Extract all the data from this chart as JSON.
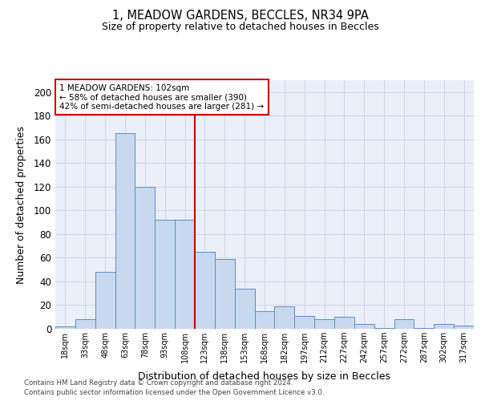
{
  "title1": "1, MEADOW GARDENS, BECCLES, NR34 9PA",
  "title2": "Size of property relative to detached houses in Beccles",
  "xlabel": "Distribution of detached houses by size in Beccles",
  "ylabel": "Number of detached properties",
  "footnote1": "Contains HM Land Registry data © Crown copyright and database right 2024.",
  "footnote2": "Contains public sector information licensed under the Open Government Licence v3.0.",
  "annotation_line1": "1 MEADOW GARDENS: 102sqm",
  "annotation_line2": "← 58% of detached houses are smaller (390)",
  "annotation_line3": "42% of semi-detached houses are larger (281) →",
  "bar_labels": [
    "18sqm",
    "33sqm",
    "48sqm",
    "63sqm",
    "78sqm",
    "93sqm",
    "108sqm",
    "123sqm",
    "138sqm",
    "153sqm",
    "168sqm",
    "182sqm",
    "197sqm",
    "212sqm",
    "227sqm",
    "242sqm",
    "257sqm",
    "272sqm",
    "287sqm",
    "302sqm",
    "317sqm"
  ],
  "bar_values": [
    2,
    8,
    48,
    165,
    120,
    92,
    92,
    65,
    59,
    34,
    15,
    19,
    11,
    8,
    10,
    4,
    1,
    8,
    1,
    4,
    3
  ],
  "bar_color": "#c8d9ef",
  "bar_edge_color": "#5b8ec4",
  "vline_x": 6,
  "vline_color": "#cc0000",
  "ylim": [
    0,
    210
  ],
  "yticks": [
    0,
    20,
    40,
    60,
    80,
    100,
    120,
    140,
    160,
    180,
    200
  ],
  "grid_color": "#ccd5e8",
  "bg_color": "#eaeff8"
}
